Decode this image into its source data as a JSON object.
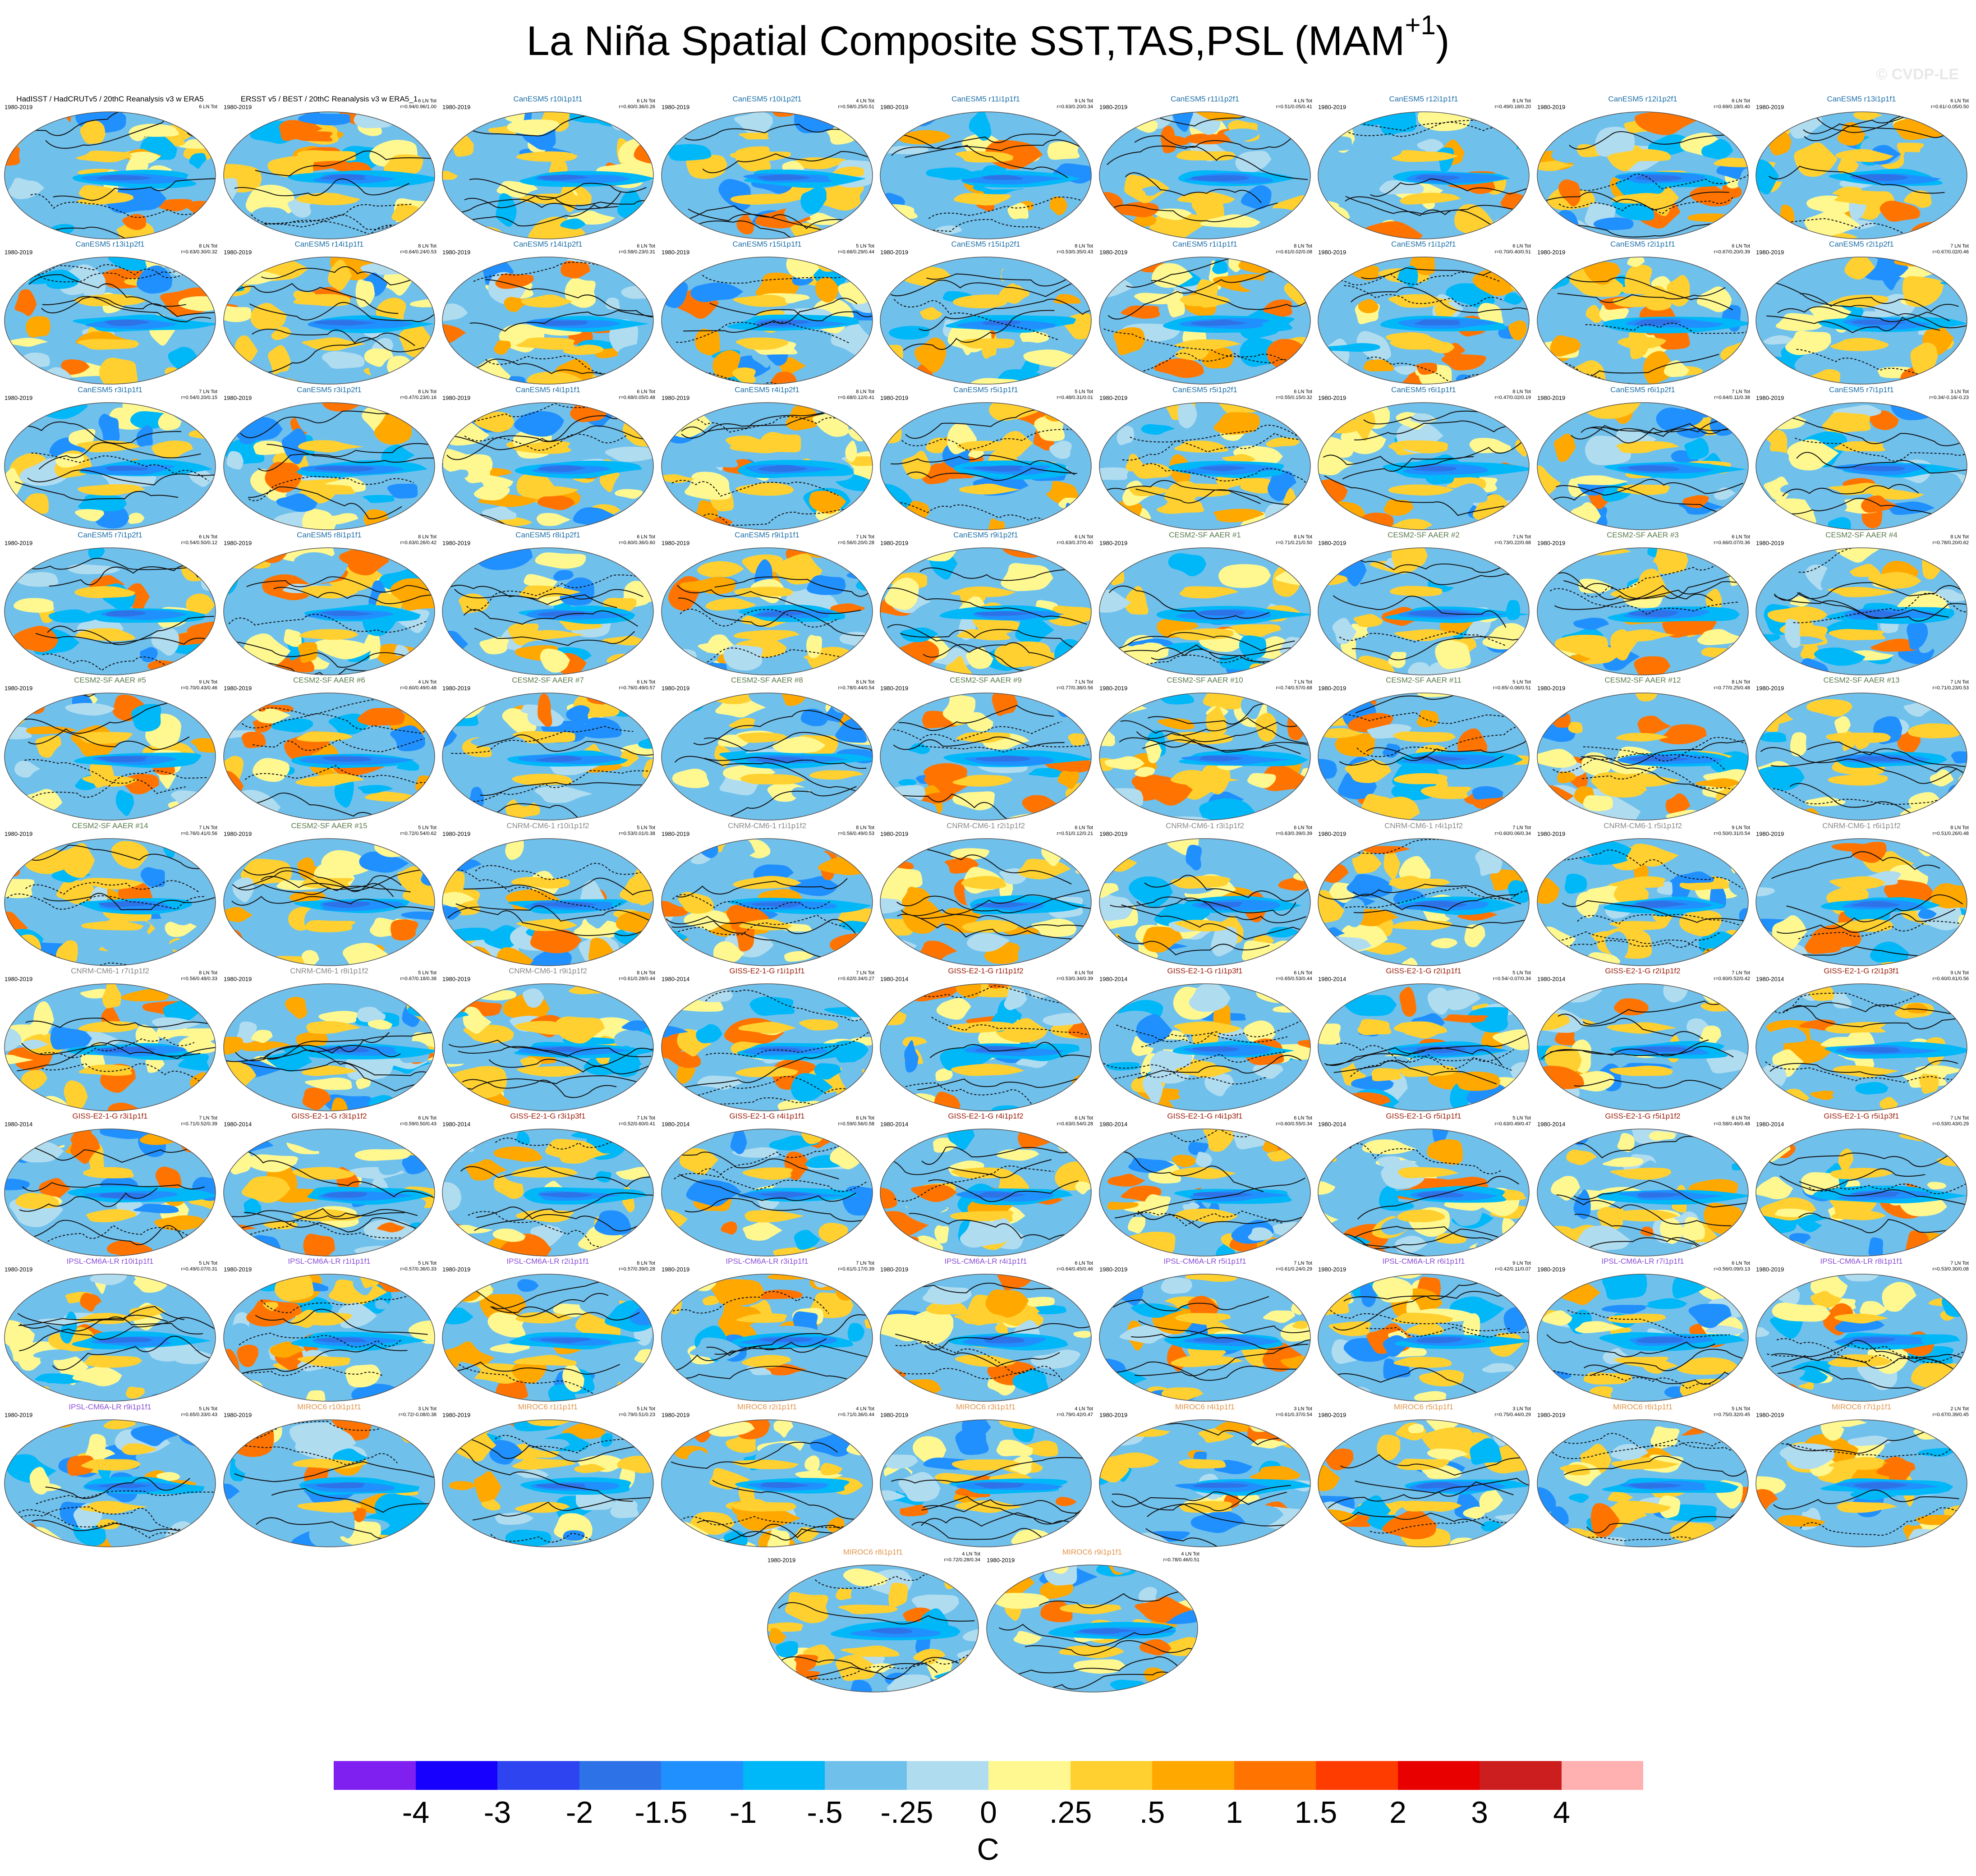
{
  "title": "La Niña Spatial Composite SST,TAS,PSL (MAM",
  "title_superscript": "+1",
  "title_close": ")",
  "copyright": "© CVDP-LE",
  "colorbar": {
    "units": "C",
    "colors": [
      "#8020f0",
      "#1800ff",
      "#2e44f0",
      "#2e72e8",
      "#2090ff",
      "#00b8f8",
      "#70c0ec",
      "#b0dcf0",
      "#fff890",
      "#ffd030",
      "#ffa800",
      "#ff7400",
      "#ff3c00",
      "#e80000",
      "#cc1e1e",
      "#ffb0b0"
    ],
    "tick_labels": [
      "-4",
      "-3",
      "-2",
      "-1.5",
      "-1",
      "-.5",
      "-.25",
      "0",
      ".25",
      ".5",
      "1",
      "1.5",
      "2",
      "3",
      "4"
    ]
  },
  "panels": [
    {
      "title": "HadISST / HadCRUTv5 / 20thC Reanalysis v3 w ERA5",
      "source": "obs",
      "years": "1980-2019",
      "stat1": "",
      "stat2": "6 LN Tot"
    },
    {
      "title": "ERSST v5 / BEST / 20thC Reanalysis v3 w ERA5_1",
      "source": "obs",
      "years": "1980-2019",
      "stat1": "6 LN Tot",
      "stat2": "r=0.94/0.96/1.00"
    },
    {
      "title": "CanESM5 r10i1p1f1",
      "source": "canesm5",
      "years": "1980-2019",
      "stat1": "6 LN Tot",
      "stat2": "r=0.60/0.36/0.26"
    },
    {
      "title": "CanESM5 r10i1p2f1",
      "source": "canesm5",
      "years": "1980-2019",
      "stat1": "4 LN Tot",
      "stat2": "r=0.58/0.25/0.51"
    },
    {
      "title": "CanESM5 r11i1p1f1",
      "source": "canesm5",
      "years": "1980-2019",
      "stat1": "9 LN Tot",
      "stat2": "r=0.63/0.20/0.34"
    },
    {
      "title": "CanESM5 r11i1p2f1",
      "source": "canesm5",
      "years": "1980-2019",
      "stat1": "4 LN Tot",
      "stat2": "r=0.51/0.05/0.41"
    },
    {
      "title": "CanESM5 r12i1p1f1",
      "source": "canesm5",
      "years": "1980-2019",
      "stat1": "8 LN Tot",
      "stat2": "r=0.49/0.18/0.20"
    },
    {
      "title": "CanESM5 r12i1p2f1",
      "source": "canesm5",
      "years": "1980-2019",
      "stat1": "6 LN Tot",
      "stat2": "r=0.69/0.18/0.40"
    },
    {
      "title": "CanESM5 r13i1p1f1",
      "source": "canesm5",
      "years": "1980-2019",
      "stat1": "6 LN Tot",
      "stat2": "r=0.61/-0.05/0.50"
    },
    {
      "title": "CanESM5 r13i1p2f1",
      "source": "canesm5",
      "years": "1980-2019",
      "stat1": "8 LN Tot",
      "stat2": "r=0.63/0.30/0.32"
    },
    {
      "title": "CanESM5 r14i1p1f1",
      "source": "canesm5",
      "years": "1980-2019",
      "stat1": "8 LN Tot",
      "stat2": "r=0.64/0.24/0.53"
    },
    {
      "title": "CanESM5 r14i1p2f1",
      "source": "canesm5",
      "years": "1980-2019",
      "stat1": "6 LN Tot",
      "stat2": "r=0.58/0.23/0.31"
    },
    {
      "title": "CanESM5 r15i1p1f1",
      "source": "canesm5",
      "years": "1980-2019",
      "stat1": "5 LN Tot",
      "stat2": "r=0.66/0.29/0.44"
    },
    {
      "title": "CanESM5 r15i1p2f1",
      "source": "canesm5",
      "years": "1980-2019",
      "stat1": "8 LN Tot",
      "stat2": "r=0.53/0.35/0.43"
    },
    {
      "title": "CanESM5 r1i1p1f1",
      "source": "canesm5",
      "years": "1980-2019",
      "stat1": "8 LN Tot",
      "stat2": "r=0.61/0.02/0.08"
    },
    {
      "title": "CanESM5 r1i1p2f1",
      "source": "canesm5",
      "years": "1980-2019",
      "stat1": "6 LN Tot",
      "stat2": "r=0.70/0.40/0.51"
    },
    {
      "title": "CanESM5 r2i1p1f1",
      "source": "canesm5",
      "years": "1980-2019",
      "stat1": "6 LN Tot",
      "stat2": "r=0.67/0.20/0.39"
    },
    {
      "title": "CanESM5 r2i1p2f1",
      "source": "canesm5",
      "years": "1980-2019",
      "stat1": "7 LN Tot",
      "stat2": "r=0.67/0.02/0.46"
    },
    {
      "title": "CanESM5 r3i1p1f1",
      "source": "canesm5",
      "years": "1980-2019",
      "stat1": "7 LN Tot",
      "stat2": "r=0.54/0.20/0.15"
    },
    {
      "title": "CanESM5 r3i1p2f1",
      "source": "canesm5",
      "years": "1980-2019",
      "stat1": "8 LN Tot",
      "stat2": "r=0.47/0.23/0.16"
    },
    {
      "title": "CanESM5 r4i1p1f1",
      "source": "canesm5",
      "years": "1980-2019",
      "stat1": "6 LN Tot",
      "stat2": "r=0.68/0.05/0.48"
    },
    {
      "title": "CanESM5 r4i1p2f1",
      "source": "canesm5",
      "years": "1980-2019",
      "stat1": "8 LN Tot",
      "stat2": "r=0.68/0.12/0.41"
    },
    {
      "title": "CanESM5 r5i1p1f1",
      "source": "canesm5",
      "years": "1980-2019",
      "stat1": "5 LN Tot",
      "stat2": "r=0.48/0.31/0.01"
    },
    {
      "title": "CanESM5 r5i1p2f1",
      "source": "canesm5",
      "years": "1980-2019",
      "stat1": "6 LN Tot",
      "stat2": "r=0.55/0.15/0.32"
    },
    {
      "title": "CanESM5 r6i1p1f1",
      "source": "canesm5",
      "years": "1980-2019",
      "stat1": "8 LN Tot",
      "stat2": "r=0.47/0.02/0.19"
    },
    {
      "title": "CanESM5 r6i1p2f1",
      "source": "canesm5",
      "years": "1980-2019",
      "stat1": "7 LN Tot",
      "stat2": "r=0.64/0.11/0.38"
    },
    {
      "title": "CanESM5 r7i1p1f1",
      "source": "canesm5",
      "years": "1980-2019",
      "stat1": "3 LN Tot",
      "stat2": "r=0.34/-0.16/-0.23"
    },
    {
      "title": "CanESM5 r7i1p2f1",
      "source": "canesm5",
      "years": "1980-2019",
      "stat1": "6 LN Tot",
      "stat2": "r=0.54/0.50/0.12"
    },
    {
      "title": "CanESM5 r8i1p1f1",
      "source": "canesm5",
      "years": "1980-2019",
      "stat1": "8 LN Tot",
      "stat2": "r=0.63/0.26/0.42"
    },
    {
      "title": "CanESM5 r8i1p2f1",
      "source": "canesm5",
      "years": "1980-2019",
      "stat1": "6 LN Tot",
      "stat2": "r=0.60/0.36/0.60"
    },
    {
      "title": "CanESM5 r9i1p1f1",
      "source": "canesm5",
      "years": "1980-2019",
      "stat1": "7 LN Tot",
      "stat2": "r=0.56/0.20/0.28"
    },
    {
      "title": "CanESM5 r9i1p2f1",
      "source": "canesm5",
      "years": "1980-2019",
      "stat1": "6 LN Tot",
      "stat2": "r=0.63/0.37/0.40"
    },
    {
      "title": "CESM2-SF AAER #1",
      "source": "cesm2",
      "years": "1980-2019",
      "stat1": "8 LN Tot",
      "stat2": "r=0.71/0.21/0.50"
    },
    {
      "title": "CESM2-SF AAER #2",
      "source": "cesm2",
      "years": "1980-2019",
      "stat1": "7 LN Tot",
      "stat2": "r=0.73/0.22/0.68"
    },
    {
      "title": "CESM2-SF AAER #3",
      "source": "cesm2",
      "years": "1980-2019",
      "stat1": "6 LN Tot",
      "stat2": "r=0.66/0.07/0.36"
    },
    {
      "title": "CESM2-SF AAER #4",
      "source": "cesm2",
      "years": "1980-2019",
      "stat1": "8 LN Tot",
      "stat2": "r=0.78/0.20/0.62"
    },
    {
      "title": "CESM2-SF AAER #5",
      "source": "cesm2",
      "years": "1980-2019",
      "stat1": "9 LN Tot",
      "stat2": "r=0.70/0.43/0.46"
    },
    {
      "title": "CESM2-SF AAER #6",
      "source": "cesm2",
      "years": "1980-2019",
      "stat1": "4 LN Tot",
      "stat2": "r=0.60/0.49/0.48"
    },
    {
      "title": "CESM2-SF AAER #7",
      "source": "cesm2",
      "years": "1980-2019",
      "stat1": "6 LN Tot",
      "stat2": "r=0.76/0.49/0.57"
    },
    {
      "title": "CESM2-SF AAER #8",
      "source": "cesm2",
      "years": "1980-2019",
      "stat1": "8 LN Tot",
      "stat2": "r=0.78/0.44/0.54"
    },
    {
      "title": "CESM2-SF AAER #9",
      "source": "cesm2",
      "years": "1980-2019",
      "stat1": "7 LN Tot",
      "stat2": "r=0.77/0.38/0.56"
    },
    {
      "title": "CESM2-SF AAER #10",
      "source": "cesm2",
      "years": "1980-2019",
      "stat1": "7 LN Tot",
      "stat2": "r=0.74/0.57/0.68"
    },
    {
      "title": "CESM2-SF AAER #11",
      "source": "cesm2",
      "years": "1980-2019",
      "stat1": "5 LN Tot",
      "stat2": "r=0.65/-0.06/0.51"
    },
    {
      "title": "CESM2-SF AAER #12",
      "source": "cesm2",
      "years": "1980-2019",
      "stat1": "8 LN Tot",
      "stat2": "r=0.77/0.25/0.48"
    },
    {
      "title": "CESM2-SF AAER #13",
      "source": "cesm2",
      "years": "1980-2019",
      "stat1": "7 LN Tot",
      "stat2": "r=0.71/0.23/0.53"
    },
    {
      "title": "CESM2-SF AAER #14",
      "source": "cesm2",
      "years": "1980-2019",
      "stat1": "7 LN Tot",
      "stat2": "r=0.76/0.41/0.56"
    },
    {
      "title": "CESM2-SF AAER #15",
      "source": "cesm2",
      "years": "1980-2019",
      "stat1": "5 LN Tot",
      "stat2": "r=0.72/0.54/0.62"
    },
    {
      "title": "CNRM-CM6-1 r10i1p1f2",
      "source": "cnrm",
      "years": "1980-2019",
      "stat1": "5 LN Tot",
      "stat2": "r=0.53/0.01/0.38"
    },
    {
      "title": "CNRM-CM6-1 r1i1p1f2",
      "source": "cnrm",
      "years": "1980-2019",
      "stat1": "8 LN Tot",
      "stat2": "r=0.56/0.49/0.53"
    },
    {
      "title": "CNRM-CM6-1 r2i1p1f2",
      "source": "cnrm",
      "years": "1980-2019",
      "stat1": "6 LN Tot",
      "stat2": "r=0.51/0.12/0.21"
    },
    {
      "title": "CNRM-CM6-1 r3i1p1f2",
      "source": "cnrm",
      "years": "1980-2019",
      "stat1": "6 LN Tot",
      "stat2": "r=0.63/0.39/0.39"
    },
    {
      "title": "CNRM-CM6-1 r4i1p1f2",
      "source": "cnrm",
      "years": "1980-2019",
      "stat1": "7 LN Tot",
      "stat2": "r=0.60/0.06/0.34"
    },
    {
      "title": "CNRM-CM6-1 r5i1p1f2",
      "source": "cnrm",
      "years": "1980-2019",
      "stat1": "9 LN Tot",
      "stat2": "r=0.50/0.31/0.54"
    },
    {
      "title": "CNRM-CM6-1 r6i1p1f2",
      "source": "cnrm",
      "years": "1980-2019",
      "stat1": "8 LN Tot",
      "stat2": "r=0.51/0.26/0.48"
    },
    {
      "title": "CNRM-CM6-1 r7i1p1f2",
      "source": "cnrm",
      "years": "1980-2019",
      "stat1": "8 LN Tot",
      "stat2": "r=0.56/0.48/0.33"
    },
    {
      "title": "CNRM-CM6-1 r8i1p1f2",
      "source": "cnrm",
      "years": "1980-2019",
      "stat1": "5 LN Tot",
      "stat2": "r=0.67/0.18/0.38"
    },
    {
      "title": "CNRM-CM6-1 r9i1p1f2",
      "source": "cnrm",
      "years": "1980-2019",
      "stat1": "8 LN Tot",
      "stat2": "r=0.61/0.28/0.44"
    },
    {
      "title": "GISS-E2-1-G r1i1p1f1",
      "source": "giss",
      "years": "1980-2014",
      "stat1": "7 LN Tot",
      "stat2": "r=0.62/0.34/0.27"
    },
    {
      "title": "GISS-E2-1-G r1i1p1f2",
      "source": "giss",
      "years": "1980-2014",
      "stat1": "6 LN Tot",
      "stat2": "r=0.53/0.34/0.39"
    },
    {
      "title": "GISS-E2-1-G r1i1p3f1",
      "source": "giss",
      "years": "1980-2014",
      "stat1": "6 LN Tot",
      "stat2": "r=0.65/0.53/0.44"
    },
    {
      "title": "GISS-E2-1-G r2i1p1f1",
      "source": "giss",
      "years": "1980-2014",
      "stat1": "5 LN Tot",
      "stat2": "r=0.54/-0.07/0.34"
    },
    {
      "title": "GISS-E2-1-G r2i1p1f2",
      "source": "giss",
      "years": "1980-2014",
      "stat1": "7 LN Tot",
      "stat2": "r=0.60/0.52/0.42"
    },
    {
      "title": "GISS-E2-1-G r2i1p3f1",
      "source": "giss",
      "years": "1980-2014",
      "stat1": "9 LN Tot",
      "stat2": "r=0.60/0.61/0.56"
    },
    {
      "title": "GISS-E2-1-G r3i1p1f1",
      "source": "giss",
      "years": "1980-2014",
      "stat1": "7 LN Tot",
      "stat2": "r=0.71/0.52/0.39"
    },
    {
      "title": "GISS-E2-1-G r3i1p1f2",
      "source": "giss",
      "years": "1980-2014",
      "stat1": "6 LN Tot",
      "stat2": "r=0.59/0.50/0.43"
    },
    {
      "title": "GISS-E2-1-G r3i1p3f1",
      "source": "giss",
      "years": "1980-2014",
      "stat1": "7 LN Tot",
      "stat2": "r=0.52/0.60/0.41"
    },
    {
      "title": "GISS-E2-1-G r4i1p1f1",
      "source": "giss",
      "years": "1980-2014",
      "stat1": "8 LN Tot",
      "stat2": "r=0.59/0.56/0.58"
    },
    {
      "title": "GISS-E2-1-G r4i1p1f2",
      "source": "giss",
      "years": "1980-2014",
      "stat1": "6 LN Tot",
      "stat2": "r=0.63/0.54/0.28"
    },
    {
      "title": "GISS-E2-1-G r4i1p3f1",
      "source": "giss",
      "years": "1980-2014",
      "stat1": "6 LN Tot",
      "stat2": "r=0.60/0.55/0.34"
    },
    {
      "title": "GISS-E2-1-G r5i1p1f1",
      "source": "giss",
      "years": "1980-2014",
      "stat1": "5 LN Tot",
      "stat2": "r=0.63/0.49/0.47"
    },
    {
      "title": "GISS-E2-1-G r5i1p1f2",
      "source": "giss",
      "years": "1980-2014",
      "stat1": "6 LN Tot",
      "stat2": "r=0.58/0.46/0.48"
    },
    {
      "title": "GISS-E2-1-G r5i1p3f1",
      "source": "giss",
      "years": "1980-2014",
      "stat1": "7 LN Tot",
      "stat2": "r=0.53/0.43/0.29"
    },
    {
      "title": "IPSL-CM6A-LR r10i1p1f1",
      "source": "ipsl",
      "years": "1980-2019",
      "stat1": "5 LN Tot",
      "stat2": "r=0.49/0.07/0.31"
    },
    {
      "title": "IPSL-CM6A-LR r1i1p1f1",
      "source": "ipsl",
      "years": "1980-2019",
      "stat1": "5 LN Tot",
      "stat2": "r=0.57/0.36/0.33"
    },
    {
      "title": "IPSL-CM6A-LR r2i1p1f1",
      "source": "ipsl",
      "years": "1980-2019",
      "stat1": "8 LN Tot",
      "stat2": "r=0.57/0.39/0.28"
    },
    {
      "title": "IPSL-CM6A-LR r3i1p1f1",
      "source": "ipsl",
      "years": "1980-2019",
      "stat1": "7 LN Tot",
      "stat2": "r=0.61/0.17/0.39"
    },
    {
      "title": "IPSL-CM6A-LR r4i1p1f1",
      "source": "ipsl",
      "years": "1980-2019",
      "stat1": "6 LN Tot",
      "stat2": "r=0.64/0.45/0.46"
    },
    {
      "title": "IPSL-CM6A-LR r5i1p1f1",
      "source": "ipsl",
      "years": "1980-2019",
      "stat1": "7 LN Tot",
      "stat2": "r=0.61/0.24/0.29"
    },
    {
      "title": "IPSL-CM6A-LR r6i1p1f1",
      "source": "ipsl",
      "years": "1980-2019",
      "stat1": "9 LN Tot",
      "stat2": "r=0.42/0.11/0.07"
    },
    {
      "title": "IPSL-CM6A-LR r7i1p1f1",
      "source": "ipsl",
      "years": "1980-2019",
      "stat1": "6 LN Tot",
      "stat2": "r=0.56/0.09/0.13"
    },
    {
      "title": "IPSL-CM6A-LR r8i1p1f1",
      "source": "ipsl",
      "years": "1980-2019",
      "stat1": "7 LN Tot",
      "stat2": "r=0.53/0.30/0.08"
    },
    {
      "title": "IPSL-CM6A-LR r9i1p1f1",
      "source": "ipsl",
      "years": "1980-2019",
      "stat1": "5 LN Tot",
      "stat2": "r=0.65/0.33/0.43"
    },
    {
      "title": "MIROC6 r10i1p1f1",
      "source": "miroc6",
      "years": "1980-2019",
      "stat1": "3 LN Tot",
      "stat2": "r=0.72/-0.08/0.38"
    },
    {
      "title": "MIROC6 r1i1p1f1",
      "source": "miroc6",
      "years": "1980-2019",
      "stat1": "5 LN Tot",
      "stat2": "r=0.79/0.51/0.23"
    },
    {
      "title": "MIROC6 r2i1p1f1",
      "source": "miroc6",
      "years": "1980-2019",
      "stat1": "4 LN Tot",
      "stat2": "r=0.71/0.36/0.44"
    },
    {
      "title": "MIROC6 r3i1p1f1",
      "source": "miroc6",
      "years": "1980-2019",
      "stat1": "4 LN Tot",
      "stat2": "r=0.79/0.42/0.47"
    },
    {
      "title": "MIROC6 r4i1p1f1",
      "source": "miroc6",
      "years": "1980-2019",
      "stat1": "3 LN Tot",
      "stat2": "r=0.61/0.37/0.54"
    },
    {
      "title": "MIROC6 r5i1p1f1",
      "source": "miroc6",
      "years": "1980-2019",
      "stat1": "3 LN Tot",
      "stat2": "r=0.75/0.44/0.29"
    },
    {
      "title": "MIROC6 r6i1p1f1",
      "source": "miroc6",
      "years": "1980-2019",
      "stat1": "5 LN Tot",
      "stat2": "r=0.75/0.32/0.45"
    },
    {
      "title": "MIROC6 r7i1p1f1",
      "source": "miroc6",
      "years": "1980-2019",
      "stat1": "2 LN Tot",
      "stat2": "r=0.67/0.39/0.45"
    },
    {
      "title": "MIROC6 r8i1p1f1",
      "source": "miroc6",
      "years": "1980-2019",
      "stat1": "4 LN Tot",
      "stat2": "r=0.72/0.28/0.34"
    },
    {
      "title": "MIROC6 r9i1p1f1",
      "source": "miroc6",
      "years": "1980-2019",
      "stat1": "4 LN Tot",
      "stat2": "r=0.78/0.46/0.51"
    }
  ]
}
